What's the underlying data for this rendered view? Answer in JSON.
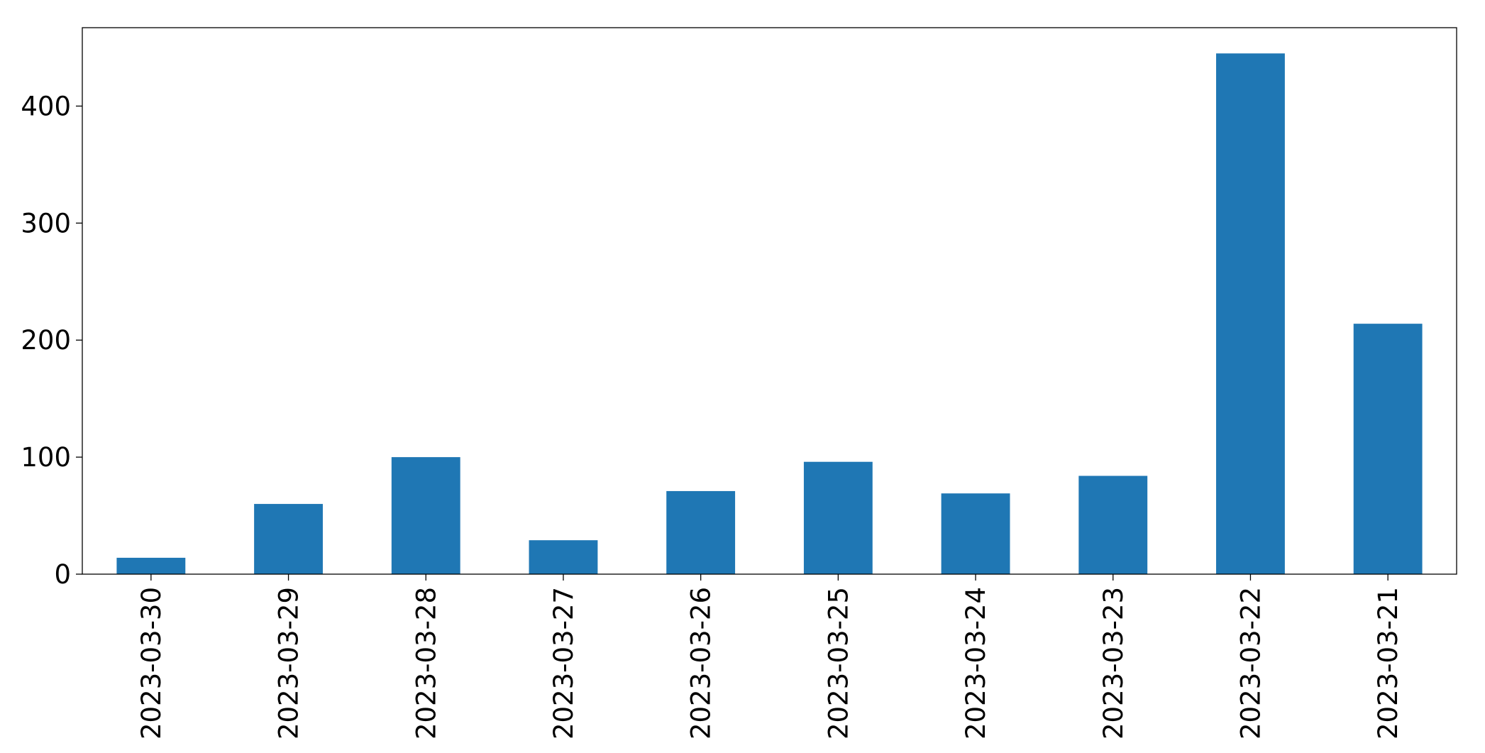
{
  "chart_data": {
    "type": "bar",
    "categories": [
      "2023-03-30",
      "2023-03-29",
      "2023-03-28",
      "2023-03-27",
      "2023-03-26",
      "2023-03-25",
      "2023-03-24",
      "2023-03-23",
      "2023-03-22",
      "2023-03-21"
    ],
    "values": [
      14,
      60,
      100,
      29,
      71,
      96,
      69,
      84,
      445,
      214
    ],
    "color": "#1f77b4",
    "ylim": [
      0,
      467
    ],
    "yticks": [
      0,
      100,
      200,
      300,
      400
    ],
    "grid": false
  }
}
